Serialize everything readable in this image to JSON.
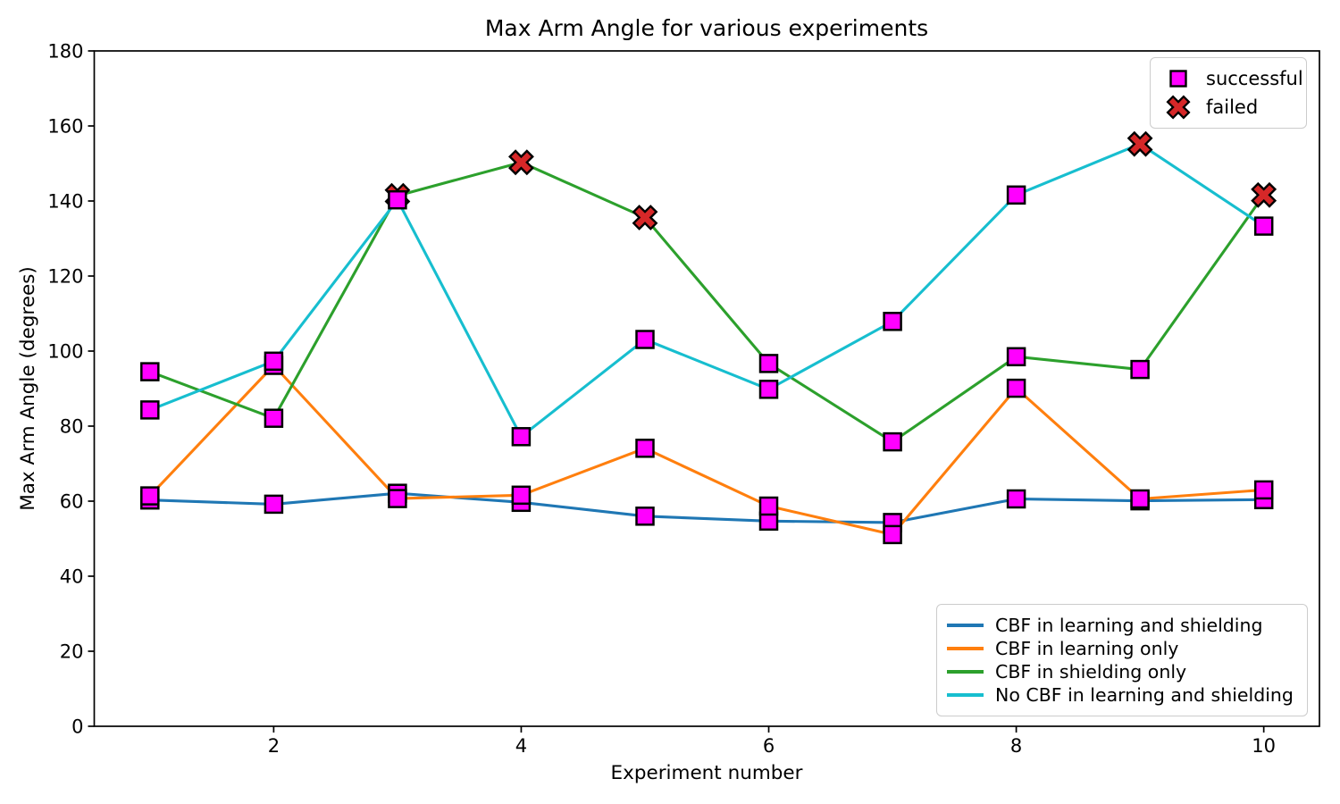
{
  "chart_data": {
    "type": "line",
    "title": "Max Arm Angle for various experiments",
    "xlabel": "Experiment number",
    "ylabel": "Max Arm Angle (degrees)",
    "x": [
      1,
      2,
      3,
      4,
      5,
      6,
      7,
      8,
      9,
      10
    ],
    "xticks": [
      2,
      4,
      6,
      8,
      10
    ],
    "yticks": [
      0,
      20,
      40,
      60,
      80,
      100,
      120,
      140,
      160,
      180
    ],
    "xlim": [
      0.55,
      10.45
    ],
    "ylim": [
      0,
      180
    ],
    "grid": false,
    "series": [
      {
        "name": "CBF in learning and shielding",
        "color": "#1f77b4",
        "values": [
          60.3,
          59.2,
          62.1,
          59.7,
          56.0,
          54.7,
          54.3,
          60.6,
          60.1,
          60.4
        ],
        "failed_x": []
      },
      {
        "name": "CBF in learning only",
        "color": "#ff7f0e",
        "values": [
          61.4,
          96.2,
          60.7,
          61.6,
          74.1,
          58.7,
          51.1,
          90.1,
          60.6,
          63.0
        ],
        "failed_x": []
      },
      {
        "name": "CBF in shielding only",
        "color": "#2ca02c",
        "values": [
          94.5,
          82.1,
          141.4,
          150.3,
          135.6,
          96.7,
          75.8,
          98.5,
          95.1,
          141.6
        ],
        "failed_x": [
          3,
          4,
          5,
          10
        ]
      },
      {
        "name": "No CBF in learning and shielding",
        "color": "#17becf",
        "values": [
          84.3,
          97.3,
          140.3,
          77.2,
          103.1,
          89.8,
          107.9,
          141.6,
          155.2,
          133.3
        ],
        "failed_x": [
          9
        ]
      }
    ],
    "marker_legend": [
      {
        "label": "successful",
        "type": "square",
        "color": "#ff00ff"
      },
      {
        "label": "failed",
        "type": "x",
        "color": "#d62728"
      }
    ],
    "legend_markers_position": "upper right",
    "legend_lines_position": "lower right"
  }
}
